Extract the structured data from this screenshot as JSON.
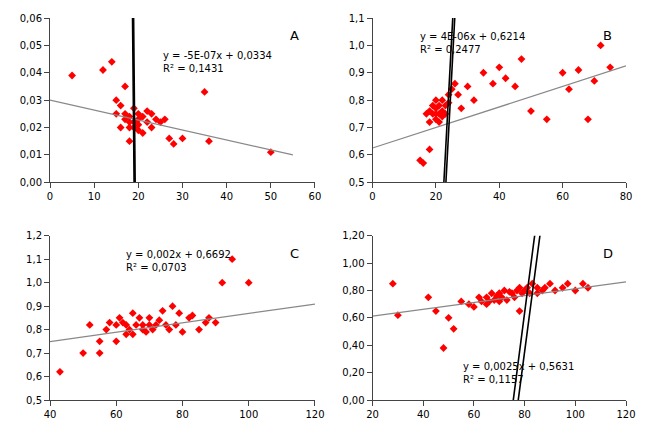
{
  "chart_data": [
    {
      "type": "scatter",
      "title": "A",
      "annotations": [
        "y = -5E-07x + 0,0334",
        "R² = 0,1431"
      ],
      "xlim": [
        0,
        60
      ],
      "ylim": [
        0.0,
        0.06
      ],
      "xticks": [
        0,
        10,
        20,
        30,
        40,
        50,
        60
      ],
      "yticks": [
        {
          "value": 0.0,
          "label": "0,00"
        },
        {
          "value": 0.01,
          "label": "0,01"
        },
        {
          "value": 0.02,
          "label": "0,02"
        },
        {
          "value": 0.03,
          "label": "0,03"
        },
        {
          "value": 0.04,
          "label": "0,04"
        },
        {
          "value": 0.05,
          "label": "0,05"
        },
        {
          "value": 0.06,
          "label": "0,06"
        }
      ],
      "grid": false,
      "series": [
        {
          "type": "scatter",
          "color": "#FF0000",
          "marker": "diamond",
          "x": [
            5,
            12,
            14,
            15,
            15,
            16,
            16,
            17,
            17,
            17,
            18,
            18,
            18,
            18,
            19,
            19,
            19,
            20,
            20,
            20,
            20,
            21,
            21,
            22,
            22,
            23,
            23,
            24,
            25,
            26,
            27,
            28,
            30,
            35,
            36,
            50
          ],
          "values": [
            0.039,
            0.041,
            0.044,
            0.025,
            0.03,
            0.02,
            0.028,
            0.035,
            0.025,
            0.023,
            0.022,
            0.02,
            0.015,
            0.024,
            0.027,
            0.02,
            0.022,
            0.025,
            0.023,
            0.019,
            0.021,
            0.024,
            0.018,
            0.022,
            0.026,
            0.025,
            0.02,
            0.023,
            0.022,
            0.023,
            0.016,
            0.014,
            0.016,
            0.033,
            0.015,
            0.011
          ]
        },
        {
          "type": "line",
          "color": "#888888",
          "x": [
            0,
            55
          ],
          "values": [
            0.03,
            0.01
          ]
        }
      ],
      "ellipse": {
        "cx": 19,
        "cy": 0.028,
        "width": 9,
        "height": 0.046,
        "angle": -10,
        "color": "#000000"
      }
    },
    {
      "type": "scatter",
      "title": "B",
      "annotations": [
        "y = 4E-06x + 0,6214",
        "R² = 0,2477"
      ],
      "xlim": [
        0,
        80
      ],
      "ylim": [
        0.5,
        1.1
      ],
      "xticks": [
        0,
        20,
        40,
        60,
        80
      ],
      "yticks": [
        {
          "value": 0.5,
          "label": "0,5"
        },
        {
          "value": 0.6,
          "label": "0,6"
        },
        {
          "value": 0.7,
          "label": "0,7"
        },
        {
          "value": 0.8,
          "label": "0,8"
        },
        {
          "value": 0.9,
          "label": "0,9"
        },
        {
          "value": 1.0,
          "label": "1,0"
        },
        {
          "value": 1.1,
          "label": "1,1"
        }
      ],
      "grid": false,
      "series": [
        {
          "type": "scatter",
          "color": "#FF0000",
          "marker": "diamond",
          "x": [
            15,
            16,
            17,
            18,
            18,
            18,
            19,
            19,
            20,
            20,
            20,
            20,
            21,
            21,
            21,
            22,
            22,
            22,
            23,
            23,
            24,
            24,
            25,
            26,
            27,
            28,
            30,
            32,
            35,
            38,
            40,
            42,
            45,
            47,
            50,
            55,
            60,
            62,
            65,
            68,
            70,
            72,
            75
          ],
          "values": [
            0.58,
            0.57,
            0.75,
            0.76,
            0.72,
            0.62,
            0.78,
            0.75,
            0.8,
            0.77,
            0.73,
            0.75,
            0.78,
            0.75,
            0.72,
            0.8,
            0.76,
            0.74,
            0.78,
            0.75,
            0.82,
            0.79,
            0.84,
            0.86,
            0.82,
            0.77,
            0.85,
            0.8,
            0.9,
            0.86,
            0.92,
            0.88,
            0.85,
            0.95,
            0.76,
            0.73,
            0.9,
            0.84,
            0.91,
            0.73,
            0.87,
            1.0,
            0.92
          ]
        },
        {
          "type": "line",
          "color": "#888888",
          "x": [
            0,
            80
          ],
          "values": [
            0.625,
            0.925
          ]
        }
      ],
      "ellipse": {
        "cx": 24,
        "cy": 0.755,
        "width": 20,
        "height": 0.155,
        "angle": 12,
        "color": "#000000"
      }
    },
    {
      "type": "scatter",
      "title": "C",
      "annotations": [
        "y = 0,002x + 0,6692",
        "R² = 0,0703"
      ],
      "xlim": [
        40,
        120
      ],
      "ylim": [
        0.5,
        1.2
      ],
      "xticks": [
        40,
        60,
        80,
        100,
        120
      ],
      "yticks": [
        {
          "value": 0.5,
          "label": "0,5"
        },
        {
          "value": 0.6,
          "label": "0,6"
        },
        {
          "value": 0.7,
          "label": "0,7"
        },
        {
          "value": 0.8,
          "label": "0,8"
        },
        {
          "value": 0.9,
          "label": "0,9"
        },
        {
          "value": 1.0,
          "label": "1,0"
        },
        {
          "value": 1.1,
          "label": "1,1"
        },
        {
          "value": 1.2,
          "label": "1,2"
        }
      ],
      "grid": false,
      "series": [
        {
          "type": "scatter",
          "color": "#FF0000",
          "marker": "diamond",
          "x": [
            43,
            50,
            52,
            55,
            55,
            57,
            58,
            60,
            60,
            61,
            62,
            63,
            63,
            64,
            65,
            65,
            66,
            67,
            68,
            68,
            69,
            70,
            70,
            71,
            72,
            73,
            74,
            75,
            76,
            77,
            78,
            79,
            80,
            82,
            83,
            85,
            87,
            88,
            90,
            92,
            95,
            100
          ],
          "values": [
            0.62,
            0.7,
            0.82,
            0.75,
            0.7,
            0.8,
            0.83,
            0.75,
            0.82,
            0.85,
            0.83,
            0.82,
            0.78,
            0.8,
            0.87,
            0.78,
            0.82,
            0.85,
            0.8,
            0.82,
            0.79,
            0.82,
            0.85,
            0.8,
            0.82,
            0.84,
            0.88,
            0.82,
            0.8,
            0.9,
            0.82,
            0.87,
            0.79,
            0.85,
            0.86,
            0.8,
            0.83,
            0.85,
            0.83,
            1.0,
            1.1,
            1.0
          ]
        },
        {
          "type": "line",
          "color": "#888888",
          "x": [
            40,
            120
          ],
          "values": [
            0.749,
            0.909
          ]
        }
      ]
    },
    {
      "type": "scatter",
      "title": "D",
      "annotations": [
        "y = 0,0025x + 0,5631",
        "R² = 0,1157"
      ],
      "xlim": [
        20,
        120
      ],
      "ylim": [
        0.0,
        1.2
      ],
      "xticks": [
        20,
        40,
        60,
        80,
        100,
        120
      ],
      "yticks": [
        {
          "value": 0.0,
          "label": "0,00"
        },
        {
          "value": 0.2,
          "label": "0,20"
        },
        {
          "value": 0.4,
          "label": "0,40"
        },
        {
          "value": 0.6,
          "label": "0,60"
        },
        {
          "value": 0.8,
          "label": "0,80"
        },
        {
          "value": 1.0,
          "label": "1,00"
        },
        {
          "value": 1.2,
          "label": "1,20"
        }
      ],
      "grid": false,
      "series": [
        {
          "type": "scatter",
          "color": "#FF0000",
          "marker": "diamond",
          "x": [
            28,
            30,
            42,
            45,
            48,
            50,
            52,
            55,
            58,
            60,
            62,
            63,
            65,
            65,
            66,
            67,
            68,
            69,
            70,
            70,
            71,
            72,
            73,
            74,
            75,
            76,
            77,
            78,
            78,
            79,
            80,
            81,
            82,
            83,
            85,
            85,
            87,
            88,
            90,
            92,
            95,
            97,
            100,
            103,
            105
          ],
          "values": [
            0.85,
            0.62,
            0.75,
            0.65,
            0.38,
            0.6,
            0.52,
            0.72,
            0.7,
            0.68,
            0.75,
            0.72,
            0.7,
            0.75,
            0.72,
            0.78,
            0.73,
            0.76,
            0.72,
            0.78,
            0.75,
            0.8,
            0.73,
            0.79,
            0.78,
            0.75,
            0.8,
            0.82,
            0.65,
            0.78,
            0.8,
            0.82,
            0.78,
            0.85,
            0.82,
            0.78,
            0.8,
            0.82,
            0.85,
            0.8,
            0.82,
            0.85,
            0.8,
            0.85,
            0.82
          ]
        },
        {
          "type": "line",
          "color": "#888888",
          "x": [
            20,
            120
          ],
          "values": [
            0.613,
            0.863
          ]
        }
      ],
      "ellipse": {
        "cx": 82,
        "cy": 0.775,
        "width": 48,
        "height": 0.3,
        "angle": 8,
        "color": "#000000"
      }
    }
  ]
}
